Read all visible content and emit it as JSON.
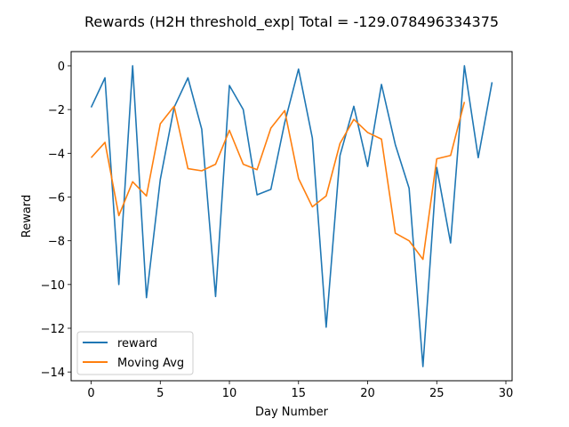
{
  "chart_data": {
    "type": "line",
    "title": "Rewards (H2H threshold_exp| Total = -129.078496334375",
    "xlabel": "Day Number",
    "ylabel": "Reward",
    "xlim": [
      -1.45,
      30.45
    ],
    "ylim": [
      -14.4,
      0.65
    ],
    "xticks": [
      0,
      5,
      10,
      15,
      20,
      25,
      30
    ],
    "yticks": [
      0,
      -2,
      -4,
      -6,
      -8,
      -10,
      -12,
      -14
    ],
    "grid": false,
    "legend_position": "lower-left",
    "series": [
      {
        "name": "reward",
        "color": "#1f77b4",
        "x": [
          0,
          1,
          2,
          3,
          4,
          5,
          6,
          7,
          8,
          9,
          10,
          11,
          12,
          13,
          14,
          15,
          16,
          17,
          18,
          19,
          20,
          21,
          22,
          23,
          24,
          25,
          26,
          27,
          28,
          29
        ],
        "values": [
          -1.9,
          -0.55,
          -10.0,
          0.0,
          -10.6,
          -5.2,
          -1.9,
          -0.55,
          -2.9,
          -10.55,
          -0.9,
          -2.0,
          -5.9,
          -5.65,
          -2.6,
          -0.15,
          -3.3,
          -11.95,
          -4.1,
          -1.85,
          -4.6,
          -0.85,
          -3.6,
          -5.6,
          -13.75,
          -4.65,
          -8.1,
          0.0,
          -4.2,
          -0.75
        ]
      },
      {
        "name": "Moving Avg",
        "color": "#ff7f0e",
        "x": [
          0,
          1,
          2,
          3,
          4,
          5,
          6,
          7,
          8,
          9,
          10,
          11,
          12,
          13,
          14,
          15,
          16,
          17,
          18,
          19,
          20,
          21,
          22,
          23,
          24,
          25,
          26,
          27
        ],
        "values": [
          -4.2,
          -3.5,
          -6.85,
          -5.3,
          -5.95,
          -2.65,
          -1.85,
          -4.7,
          -4.8,
          -4.5,
          -2.95,
          -4.5,
          -4.75,
          -2.85,
          -2.05,
          -5.15,
          -6.45,
          -5.95,
          -3.55,
          -2.45,
          -3.05,
          -3.35,
          -7.65,
          -8.0,
          -8.85,
          -4.25,
          -4.1,
          -1.65
        ]
      }
    ]
  }
}
